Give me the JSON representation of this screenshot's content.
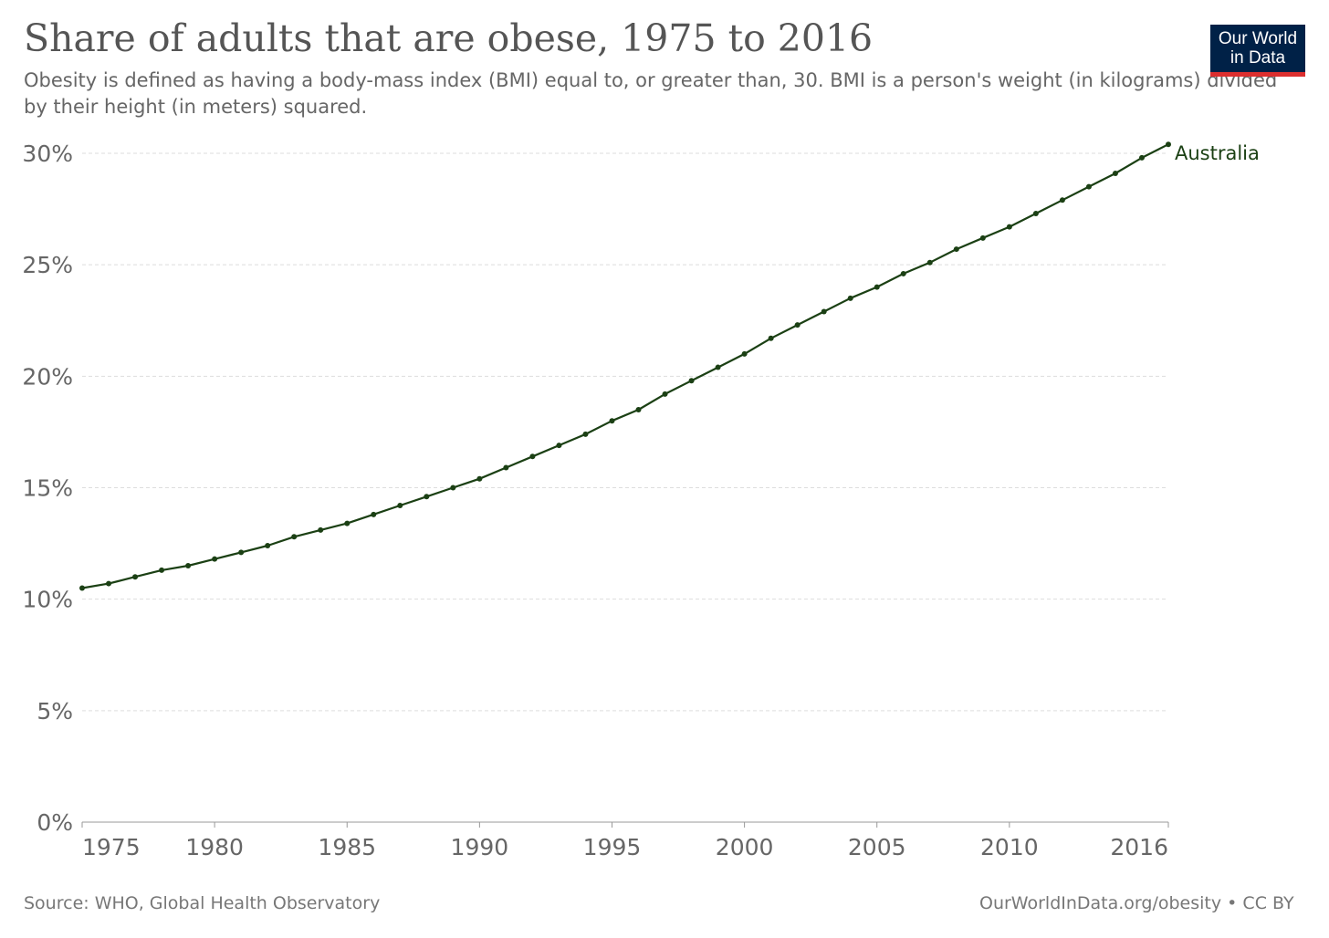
{
  "header": {
    "title": "Share of adults that are obese, 1975 to 2016",
    "subtitle": "Obesity is defined as having a body-mass index (BMI) equal to, or greater than, 30. BMI is a person's weight (in kilograms) divided by their height (in meters) squared."
  },
  "logo": {
    "line1": "Our World",
    "line2": "in Data",
    "colors": {
      "background": "#002147",
      "accent": "#dc2f2f"
    }
  },
  "footer": {
    "source": "Source: WHO, Global Health Observatory",
    "url": "OurWorldInData.org/obesity",
    "separator": " • ",
    "license": "CC BY"
  },
  "chart_data": {
    "type": "line",
    "title": "Share of adults that are obese, 1975 to 2016",
    "xlabel": "",
    "ylabel": "",
    "xlim": [
      1975,
      2016
    ],
    "ylim": [
      0,
      30
    ],
    "y_ticks": [
      0,
      5,
      10,
      15,
      20,
      25,
      30
    ],
    "y_tick_labels": [
      "0%",
      "5%",
      "10%",
      "15%",
      "20%",
      "25%",
      "30%"
    ],
    "x_ticks": [
      1975,
      1980,
      1985,
      1990,
      1995,
      2000,
      2005,
      2010,
      2016
    ],
    "x_tick_labels": [
      "1975",
      "1980",
      "1985",
      "1990",
      "1995",
      "2000",
      "2005",
      "2010",
      "2016"
    ],
    "grid": "horizontal dashed",
    "legend": "inline label at line end",
    "colors": {
      "line": "#1b4014",
      "grid": "#dddddd",
      "axis": "#999999",
      "tick_text": "#666666"
    },
    "series": [
      {
        "name": "Australia",
        "x": [
          1975,
          1976,
          1977,
          1978,
          1979,
          1980,
          1981,
          1982,
          1983,
          1984,
          1985,
          1986,
          1987,
          1988,
          1989,
          1990,
          1991,
          1992,
          1993,
          1994,
          1995,
          1996,
          1997,
          1998,
          1999,
          2000,
          2001,
          2002,
          2003,
          2004,
          2005,
          2006,
          2007,
          2008,
          2009,
          2010,
          2011,
          2012,
          2013,
          2014,
          2015,
          2016
        ],
        "values": [
          10.5,
          10.7,
          11.0,
          11.3,
          11.5,
          11.8,
          12.1,
          12.4,
          12.8,
          13.1,
          13.4,
          13.8,
          14.2,
          14.6,
          15.0,
          15.4,
          15.9,
          16.4,
          16.9,
          17.4,
          18.0,
          18.5,
          19.2,
          19.8,
          20.4,
          21.0,
          21.7,
          22.3,
          22.9,
          23.5,
          24.0,
          24.6,
          25.1,
          25.7,
          26.2,
          26.7,
          27.3,
          27.9,
          28.5,
          29.1,
          29.8,
          30.4
        ]
      }
    ]
  }
}
